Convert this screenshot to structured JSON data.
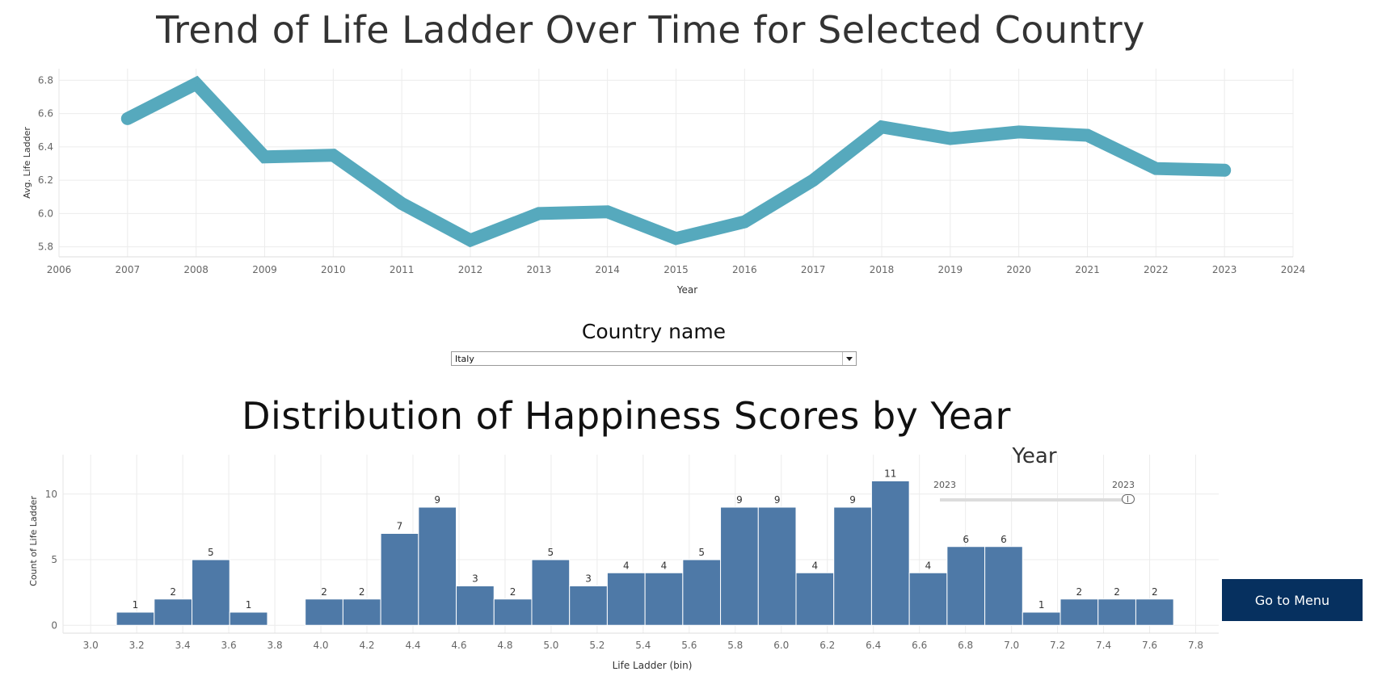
{
  "line_chart": {
    "title": "Trend of Life Ladder Over Time for Selected Country"
  },
  "country_filter": {
    "title": "Country name",
    "selected": "Italy"
  },
  "histogram": {
    "title": "Distribution of Happiness Scores by Year"
  },
  "year_filter": {
    "title": "Year",
    "range_start": "2023",
    "range_end": "2023"
  },
  "menu_button": {
    "label": "Go to Menu"
  },
  "colors": {
    "line": "#56a9bd",
    "bars": "#4e79a7",
    "button": "#06305f"
  },
  "chart_data": [
    {
      "type": "line",
      "title": "Trend of Life Ladder Over Time for Selected Country",
      "xlabel": "Year",
      "ylabel": "Avg. Life Ladder",
      "x": [
        2007,
        2008,
        2009,
        2010,
        2011,
        2012,
        2013,
        2014,
        2015,
        2016,
        2017,
        2018,
        2019,
        2020,
        2021,
        2022,
        2023
      ],
      "values": [
        6.57,
        6.78,
        6.34,
        6.35,
        6.06,
        5.84,
        6.0,
        6.01,
        5.85,
        5.95,
        6.2,
        6.52,
        6.45,
        6.49,
        6.47,
        6.27,
        6.26
      ],
      "xlim": [
        2006,
        2024
      ],
      "ylim": [
        5.74,
        6.87
      ],
      "xticks": [
        2006,
        2007,
        2008,
        2009,
        2010,
        2011,
        2012,
        2013,
        2014,
        2015,
        2016,
        2017,
        2018,
        2019,
        2020,
        2021,
        2022,
        2023,
        2024
      ],
      "yticks": [
        5.8,
        6.0,
        6.2,
        6.4,
        6.6,
        6.8
      ],
      "ytick_labels": [
        "5.8",
        "6.0",
        "6.2",
        "6.4",
        "6.6",
        "6.8"
      ],
      "grid": true
    },
    {
      "type": "bar",
      "title": "Distribution of Happiness Scores by Year",
      "xlabel": "Life Ladder (bin)",
      "ylabel": "Count of Life Ladder",
      "bin_width": 0.164,
      "bin_starts": [
        3.112,
        3.276,
        3.44,
        3.604,
        3.932,
        4.096,
        4.26,
        4.424,
        4.588,
        4.752,
        4.916,
        5.08,
        5.244,
        5.408,
        5.572,
        5.736,
        5.9,
        6.064,
        6.228,
        6.392,
        6.556,
        6.72,
        6.884,
        7.048,
        7.212,
        7.376,
        7.54
      ],
      "values": [
        1,
        2,
        5,
        1,
        2,
        2,
        7,
        9,
        3,
        2,
        5,
        3,
        4,
        4,
        5,
        9,
        9,
        4,
        9,
        11,
        4,
        6,
        6,
        1,
        2,
        2,
        2
      ],
      "xlim": [
        2.88,
        7.9
      ],
      "ylim": [
        -0.6,
        13
      ],
      "xticks": [
        3.0,
        3.2,
        3.4,
        3.6,
        3.8,
        4.0,
        4.2,
        4.4,
        4.6,
        4.8,
        5.0,
        5.2,
        5.4,
        5.6,
        5.8,
        6.0,
        6.2,
        6.4,
        6.6,
        6.8,
        7.0,
        7.2,
        7.4,
        7.6,
        7.8
      ],
      "xtick_labels": [
        "3.0",
        "3.2",
        "3.4",
        "3.6",
        "3.8",
        "4.0",
        "4.2",
        "4.4",
        "4.6",
        "4.8",
        "5.0",
        "5.2",
        "5.4",
        "5.6",
        "5.8",
        "6.0",
        "6.2",
        "6.4",
        "6.6",
        "6.8",
        "7.0",
        "7.2",
        "7.4",
        "7.6",
        "7.8"
      ],
      "yticks": [
        0,
        5,
        10
      ],
      "ytick_labels": [
        "0",
        "5",
        "10"
      ],
      "grid": true
    }
  ]
}
